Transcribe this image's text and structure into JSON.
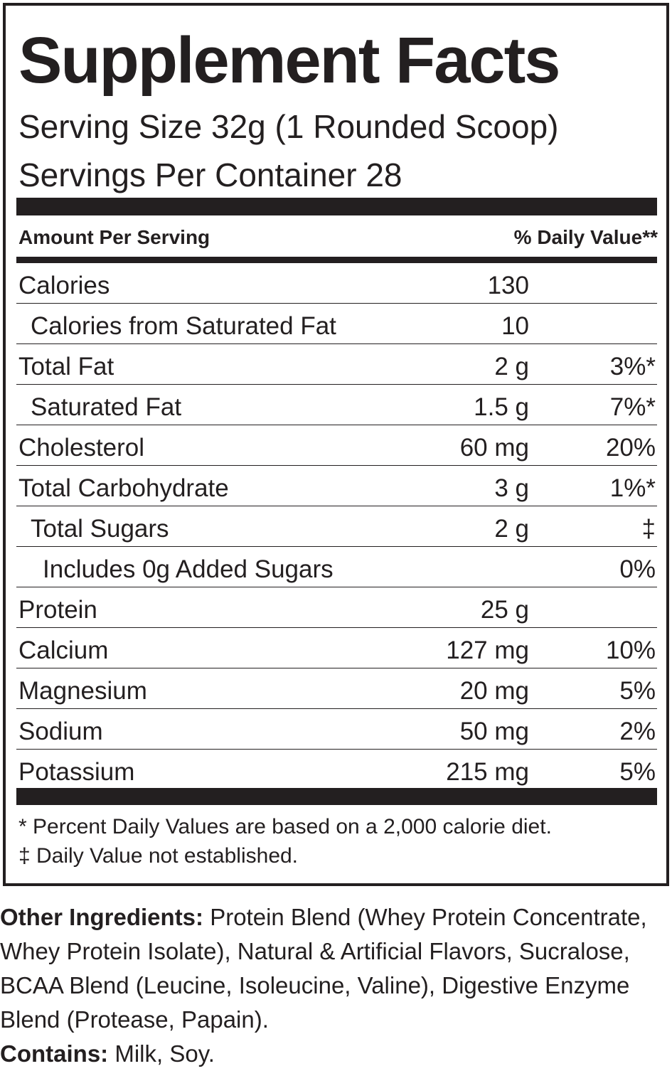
{
  "panel": {
    "title": "Supplement Facts",
    "serving_size": "Serving Size 32g (1 Rounded Scoop)",
    "servings_per_container": "Servings Per Container  28",
    "header": {
      "left": "Amount Per Serving",
      "right": "% Daily Value**"
    },
    "rows": [
      {
        "name": "Calories",
        "amount": "130",
        "children": [
          {
            "name": "Calories from Saturated Fat",
            "amount": "10"
          }
        ]
      },
      {
        "name": "Total Fat",
        "amount": "2 g",
        "dv": "3%*",
        "children": [
          {
            "name": "Saturated Fat",
            "amount": "1.5 g",
            "dv": "7%*"
          }
        ]
      },
      {
        "name": "Cholesterol",
        "amount": "60 mg",
        "dv": "20%"
      },
      {
        "name": "Total Carbohydrate",
        "amount": "3 g",
        "dv": "1%*",
        "children": [
          {
            "name": "Total Sugars",
            "amount": "2 g",
            "dv": "‡",
            "children": [
              {
                "name": "Includes 0g Added Sugars",
                "dv": "0%"
              }
            ]
          }
        ]
      },
      {
        "name": "Protein",
        "amount": "25 g"
      },
      {
        "name": "Calcium",
        "amount": "127 mg",
        "dv": "10%"
      },
      {
        "name": "Magnesium",
        "amount": "20 mg",
        "dv": "5%"
      },
      {
        "name": "Sodium",
        "amount": "50 mg",
        "dv": "2%"
      },
      {
        "name": "Potassium",
        "amount": "215 mg",
        "dv": "5%"
      }
    ],
    "footnotes": [
      "* Percent Daily Values are based on a 2,000 calorie diet.",
      "‡ Daily Value not established."
    ]
  },
  "other_ingredients": {
    "label": "Other Ingredients:",
    "text": "Protein Blend (Whey Protein Concentrate, Whey Protein Isolate), Natural & Artificial Flavors, Sucralose, BCAA Blend (Leucine, Isoleucine, Valine), Digestive Enzyme Blend (Protease, Papain)."
  },
  "contains": {
    "label": "Contains:",
    "text": "Milk, Soy."
  }
}
